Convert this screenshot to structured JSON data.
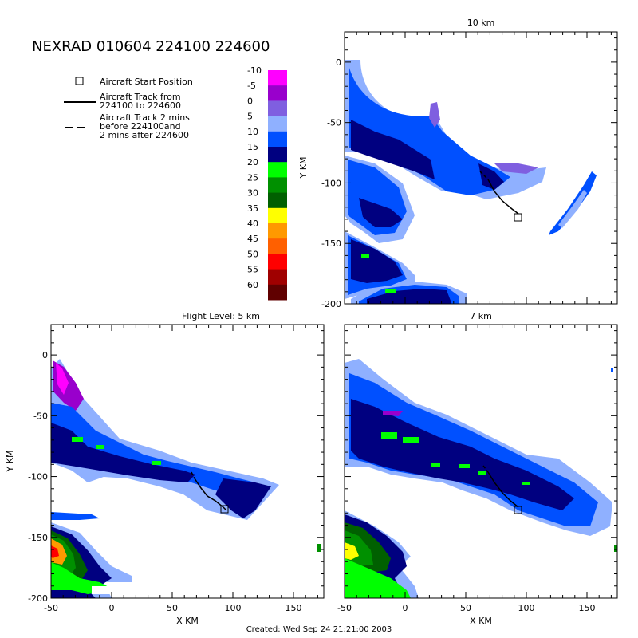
{
  "title": "NEXRAD 010604 224100 224600",
  "footer": "Created: Wed Sep 24 21:21:00 2003",
  "legend": {
    "start": "Aircraft Start Position",
    "track_line1": "Aircraft Track from",
    "track_line2": "224100 to 224600",
    "dash_line1": "Aircraft Track 2 mins",
    "dash_line2": "before 224100and",
    "dash_line3": "2 mins after 224600"
  },
  "colorbar": {
    "labels": [
      "-10",
      "-5",
      "0",
      "5",
      "10",
      "15",
      "20",
      "25",
      "30",
      "35",
      "40",
      "45",
      "50",
      "55",
      "60"
    ],
    "colors": [
      "#ff00ff",
      "#9900cc",
      "#7f5fe0",
      "#8fb0ff",
      "#0050ff",
      "#000080",
      "#00ff00",
      "#009000",
      "#006000",
      "#ffff00",
      "#ff9900",
      "#ff6000",
      "#ff0000",
      "#a00000",
      "#600000"
    ]
  },
  "chart_data": [
    {
      "type": "heatmap",
      "title": "10 km",
      "xlabel": "",
      "ylabel": "Y KM",
      "xlim": [
        -50,
        175
      ],
      "ylim": [
        -200,
        25
      ],
      "yticks": [
        "0",
        "-50",
        "-100",
        "-150",
        "-200"
      ],
      "xticks": [],
      "aircraft_start": [
        92,
        -128
      ]
    },
    {
      "type": "heatmap",
      "title": "Flight Level: 5 km",
      "xlabel": "X KM",
      "ylabel": "Y KM",
      "xlim": [
        -50,
        175
      ],
      "ylim": [
        -200,
        25
      ],
      "xticks": [
        "-50",
        "0",
        "50",
        "100",
        "150"
      ],
      "yticks": [
        "0",
        "-50",
        "-100",
        "-150",
        "-200"
      ],
      "aircraft_start": [
        92,
        -128
      ]
    },
    {
      "type": "heatmap",
      "title": "7 km",
      "xlabel": "X KM",
      "ylabel": "",
      "xlim": [
        -50,
        175
      ],
      "ylim": [
        -200,
        25
      ],
      "xticks": [
        "-50",
        "0",
        "50",
        "100",
        "150"
      ],
      "yticks": [],
      "aircraft_start": [
        92,
        -128
      ]
    }
  ]
}
